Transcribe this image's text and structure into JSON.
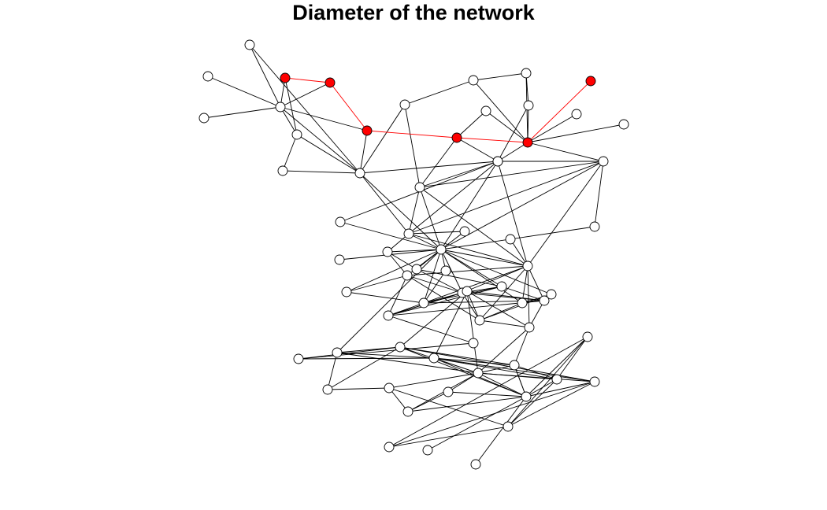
{
  "title": "Diameter of the network",
  "colors": {
    "node_fill": "#ffffff",
    "node_stroke": "#000000",
    "edge": "#000000",
    "highlight": "#ff0000"
  },
  "nodes": [
    {
      "id": "n1",
      "d": false
    },
    {
      "id": "n2",
      "d": false
    },
    {
      "id": "n3",
      "d": true
    },
    {
      "id": "n4",
      "d": true
    },
    {
      "id": "n5",
      "d": false
    },
    {
      "id": "n6",
      "d": false
    },
    {
      "id": "n7",
      "d": false
    },
    {
      "id": "n8",
      "d": false
    },
    {
      "id": "n9",
      "d": true
    },
    {
      "id": "n10",
      "d": false
    },
    {
      "id": "n11",
      "d": false
    },
    {
      "id": "n12",
      "d": false
    },
    {
      "id": "n13",
      "d": false
    },
    {
      "id": "n14",
      "d": false
    },
    {
      "id": "n15",
      "d": true
    },
    {
      "id": "n16",
      "d": false
    },
    {
      "id": "n17",
      "d": false
    },
    {
      "id": "n18",
      "d": true
    },
    {
      "id": "n19",
      "d": true
    },
    {
      "id": "n20",
      "d": false
    },
    {
      "id": "n21",
      "d": false
    },
    {
      "id": "n22",
      "d": false
    },
    {
      "id": "n23",
      "d": false
    },
    {
      "id": "n24",
      "d": false
    },
    {
      "id": "n25",
      "d": false
    },
    {
      "id": "n26",
      "d": false
    },
    {
      "id": "n27",
      "d": false
    },
    {
      "id": "n28",
      "d": false
    },
    {
      "id": "n29",
      "d": false
    },
    {
      "id": "n30",
      "d": false
    },
    {
      "id": "n31",
      "d": false
    },
    {
      "id": "n32",
      "d": false
    },
    {
      "id": "n33",
      "d": false
    },
    {
      "id": "n34",
      "d": false
    },
    {
      "id": "n35",
      "d": false
    },
    {
      "id": "n36",
      "d": false
    },
    {
      "id": "n37",
      "d": false
    },
    {
      "id": "n38",
      "d": false
    },
    {
      "id": "n39",
      "d": false
    },
    {
      "id": "n40",
      "d": false
    },
    {
      "id": "n41",
      "d": false
    },
    {
      "id": "n42",
      "d": false
    },
    {
      "id": "n43",
      "d": false
    },
    {
      "id": "n44",
      "d": false
    },
    {
      "id": "n45",
      "d": false
    },
    {
      "id": "n46",
      "d": false
    },
    {
      "id": "n47",
      "d": false
    },
    {
      "id": "n48",
      "d": false
    },
    {
      "id": "n49",
      "d": false
    },
    {
      "id": "n50",
      "d": false
    },
    {
      "id": "n51",
      "d": false
    },
    {
      "id": "n52",
      "d": false
    },
    {
      "id": "n53",
      "d": false
    },
    {
      "id": "n54",
      "d": false
    },
    {
      "id": "n55",
      "d": false
    },
    {
      "id": "n56",
      "d": false
    },
    {
      "id": "n57",
      "d": false
    },
    {
      "id": "n58",
      "d": false
    },
    {
      "id": "n59",
      "d": false
    },
    {
      "id": "n60",
      "d": false
    },
    {
      "id": "n61",
      "d": false
    },
    {
      "id": "n62",
      "d": false
    },
    {
      "id": "n63",
      "d": false
    },
    {
      "id": "n64",
      "d": false
    },
    {
      "id": "n65",
      "d": false
    },
    {
      "id": "n66",
      "d": false
    }
  ],
  "edges": [
    {
      "s": "n3",
      "t": "n4",
      "d": true
    },
    {
      "s": "n4",
      "t": "n15",
      "d": true
    },
    {
      "s": "n15",
      "t": "n18",
      "d": true
    },
    {
      "s": "n18",
      "t": "n19",
      "d": true
    },
    {
      "s": "n19",
      "t": "n9",
      "d": true
    },
    {
      "s": "n1",
      "t": "n5",
      "d": false
    },
    {
      "s": "n2",
      "t": "n5",
      "d": false
    },
    {
      "s": "n6",
      "t": "n5",
      "d": false
    },
    {
      "s": "n3",
      "t": "n5",
      "d": false
    },
    {
      "s": "n4",
      "t": "n5",
      "d": false
    },
    {
      "s": "n3",
      "t": "n10",
      "d": false
    },
    {
      "s": "n5",
      "t": "n10",
      "d": false
    },
    {
      "s": "n5",
      "t": "n15",
      "d": false
    },
    {
      "s": "n5",
      "t": "n21",
      "d": false
    },
    {
      "s": "n10",
      "t": "n21",
      "d": false
    },
    {
      "s": "n10",
      "t": "n20",
      "d": false
    },
    {
      "s": "n20",
      "t": "n21",
      "d": false
    },
    {
      "s": "n1",
      "t": "n21",
      "d": false
    },
    {
      "s": "n15",
      "t": "n21",
      "d": false
    },
    {
      "s": "n11",
      "t": "n21",
      "d": false
    },
    {
      "s": "n21",
      "t": "n23",
      "d": false
    },
    {
      "s": "n21",
      "t": "n26",
      "d": false
    },
    {
      "s": "n21",
      "t": "n32",
      "d": false
    },
    {
      "s": "n11",
      "t": "n7",
      "d": false
    },
    {
      "s": "n7",
      "t": "n8",
      "d": false
    },
    {
      "s": "n8",
      "t": "n12",
      "d": false
    },
    {
      "s": "n12",
      "t": "n19",
      "d": false
    },
    {
      "s": "n8",
      "t": "n19",
      "d": false
    },
    {
      "s": "n7",
      "t": "n19",
      "d": false
    },
    {
      "s": "n12",
      "t": "n13",
      "d": false
    },
    {
      "s": "n13",
      "t": "n18",
      "d": false
    },
    {
      "s": "n13",
      "t": "n19",
      "d": false
    },
    {
      "s": "n14",
      "t": "n19",
      "d": false
    },
    {
      "s": "n17",
      "t": "n19",
      "d": false
    },
    {
      "s": "n16",
      "t": "n19",
      "d": false
    },
    {
      "s": "n18",
      "t": "n22",
      "d": false
    },
    {
      "s": "n18",
      "t": "n17",
      "d": false
    },
    {
      "s": "n11",
      "t": "n22",
      "d": false
    },
    {
      "s": "n19",
      "t": "n24",
      "d": false
    },
    {
      "s": "n22",
      "t": "n23",
      "d": false
    },
    {
      "s": "n22",
      "t": "n26",
      "d": false
    },
    {
      "s": "n22",
      "t": "n32",
      "d": false
    },
    {
      "s": "n22",
      "t": "n37",
      "d": false
    },
    {
      "s": "n22",
      "t": "n24",
      "d": false
    },
    {
      "s": "n25",
      "t": "n23",
      "d": false
    },
    {
      "s": "n25",
      "t": "n32",
      "d": false
    },
    {
      "s": "n23",
      "t": "n24",
      "d": false
    },
    {
      "s": "n24",
      "t": "n28",
      "d": false
    },
    {
      "s": "n27",
      "t": "n26",
      "d": false
    },
    {
      "s": "n27",
      "t": "n32",
      "d": false
    },
    {
      "s": "n26",
      "t": "n30",
      "d": false
    },
    {
      "s": "n26",
      "t": "n24",
      "d": false
    },
    {
      "s": "n26",
      "t": "n32",
      "d": false
    },
    {
      "s": "n23",
      "t": "n32",
      "d": false
    },
    {
      "s": "n23",
      "t": "n26",
      "d": false
    },
    {
      "s": "n29",
      "t": "n32",
      "d": false
    },
    {
      "s": "n31",
      "t": "n37",
      "d": false
    },
    {
      "s": "n23",
      "t": "n37",
      "d": false
    },
    {
      "s": "n26",
      "t": "n37",
      "d": false
    },
    {
      "s": "n30",
      "t": "n32",
      "d": false
    },
    {
      "s": "n24",
      "t": "n32",
      "d": false
    },
    {
      "s": "n24",
      "t": "n37",
      "d": false
    },
    {
      "s": "n28",
      "t": "n32",
      "d": false
    },
    {
      "s": "n32",
      "t": "n37",
      "d": false
    },
    {
      "s": "n32",
      "t": "n34",
      "d": false
    },
    {
      "s": "n32",
      "t": "n35",
      "d": false
    },
    {
      "s": "n32",
      "t": "n36",
      "d": false
    },
    {
      "s": "n32",
      "t": "n38",
      "d": false
    },
    {
      "s": "n32",
      "t": "n39",
      "d": false
    },
    {
      "s": "n32",
      "t": "n40",
      "d": false
    },
    {
      "s": "n32",
      "t": "n41",
      "d": false
    },
    {
      "s": "n32",
      "t": "n33",
      "d": false
    },
    {
      "s": "n32",
      "t": "n43",
      "d": false
    },
    {
      "s": "n32",
      "t": "n50",
      "d": false
    },
    {
      "s": "n33",
      "t": "n37",
      "d": false
    },
    {
      "s": "n33",
      "t": "n38",
      "d": false
    },
    {
      "s": "n33",
      "t": "n44",
      "d": false
    },
    {
      "s": "n33",
      "t": "n45",
      "d": false
    },
    {
      "s": "n30",
      "t": "n33",
      "d": false
    },
    {
      "s": "n33",
      "t": "n34",
      "d": false
    },
    {
      "s": "n36",
      "t": "n38",
      "d": false
    },
    {
      "s": "n36",
      "t": "n39",
      "d": false
    },
    {
      "s": "n30",
      "t": "n36",
      "d": false
    },
    {
      "s": "n37",
      "t": "n38",
      "d": false
    },
    {
      "s": "n37",
      "t": "n40",
      "d": false
    },
    {
      "s": "n37",
      "t": "n43",
      "d": false
    },
    {
      "s": "n37",
      "t": "n44",
      "d": false
    },
    {
      "s": "n37",
      "t": "n42",
      "d": false
    },
    {
      "s": "n37",
      "t": "n47",
      "d": false
    },
    {
      "s": "n38",
      "t": "n39",
      "d": false
    },
    {
      "s": "n38",
      "t": "n40",
      "d": false
    },
    {
      "s": "n38",
      "t": "n42",
      "d": false
    },
    {
      "s": "n38",
      "t": "n44",
      "d": false
    },
    {
      "s": "n38",
      "t": "n45",
      "d": false
    },
    {
      "s": "n38",
      "t": "n48",
      "d": false
    },
    {
      "s": "n39",
      "t": "n40",
      "d": false
    },
    {
      "s": "n39",
      "t": "n42",
      "d": false
    },
    {
      "s": "n39",
      "t": "n45",
      "d": false
    },
    {
      "s": "n34",
      "t": "n40",
      "d": false
    },
    {
      "s": "n35",
      "t": "n40",
      "d": false
    },
    {
      "s": "n40",
      "t": "n42",
      "d": false
    },
    {
      "s": "n40",
      "t": "n45",
      "d": false
    },
    {
      "s": "n41",
      "t": "n42",
      "d": false
    },
    {
      "s": "n41",
      "t": "n43",
      "d": false
    },
    {
      "s": "n41",
      "t": "n44",
      "d": false
    },
    {
      "s": "n43",
      "t": "n44",
      "d": false
    },
    {
      "s": "n44",
      "t": "n47",
      "d": false
    },
    {
      "s": "n44",
      "t": "n48",
      "d": false
    },
    {
      "s": "n42",
      "t": "n47",
      "d": false
    },
    {
      "s": "n42",
      "t": "n48",
      "d": false
    },
    {
      "s": "n42",
      "t": "n45",
      "d": false
    },
    {
      "s": "n45",
      "t": "n48",
      "d": false
    },
    {
      "s": "n45",
      "t": "n46",
      "d": false
    },
    {
      "s": "n46",
      "t": "n49",
      "d": false
    },
    {
      "s": "n47",
      "t": "n48",
      "d": false
    },
    {
      "s": "n47",
      "t": "n54",
      "d": false
    },
    {
      "s": "n47",
      "t": "n56",
      "d": false
    },
    {
      "s": "n48",
      "t": "n53",
      "d": false
    },
    {
      "s": "n48",
      "t": "n51",
      "d": false
    },
    {
      "s": "n48",
      "t": "n54",
      "d": false
    },
    {
      "s": "n49",
      "t": "n51",
      "d": false
    },
    {
      "s": "n49",
      "t": "n53",
      "d": false
    },
    {
      "s": "n50",
      "t": "n51",
      "d": false
    },
    {
      "s": "n50",
      "t": "n52",
      "d": false
    },
    {
      "s": "n50",
      "t": "n53",
      "d": false
    },
    {
      "s": "n50",
      "t": "n54",
      "d": false
    },
    {
      "s": "n51",
      "t": "n54",
      "d": false
    },
    {
      "s": "n51",
      "t": "n56",
      "d": false
    },
    {
      "s": "n51",
      "t": "n58",
      "d": false
    },
    {
      "s": "n51",
      "t": "n59",
      "d": false
    },
    {
      "s": "n52",
      "t": "n51",
      "d": false
    },
    {
      "s": "n52",
      "t": "n55",
      "d": false
    },
    {
      "s": "n53",
      "t": "n54",
      "d": false
    },
    {
      "s": "n53",
      "t": "n56",
      "d": false
    },
    {
      "s": "n53",
      "t": "n57",
      "d": false
    },
    {
      "s": "n53",
      "t": "n58",
      "d": false
    },
    {
      "s": "n54",
      "t": "n55",
      "d": false
    },
    {
      "s": "n54",
      "t": "n56",
      "d": false
    },
    {
      "s": "n54",
      "t": "n57",
      "d": false
    },
    {
      "s": "n54",
      "t": "n58",
      "d": false
    },
    {
      "s": "n54",
      "t": "n59",
      "d": false
    },
    {
      "s": "n54",
      "t": "n60",
      "d": false
    },
    {
      "s": "n54",
      "t": "n61",
      "d": false
    },
    {
      "s": "n56",
      "t": "n57",
      "d": false
    },
    {
      "s": "n56",
      "t": "n59",
      "d": false
    },
    {
      "s": "n57",
      "t": "n59",
      "d": false
    },
    {
      "s": "n53",
      "t": "n59",
      "d": false
    },
    {
      "s": "n58",
      "t": "n59",
      "d": false
    },
    {
      "s": "n59",
      "t": "n60",
      "d": false
    },
    {
      "s": "n59",
      "t": "n61",
      "d": false
    },
    {
      "s": "n56",
      "t": "n59",
      "d": false
    },
    {
      "s": "n55",
      "t": "n63",
      "d": false
    },
    {
      "s": "n55",
      "t": "n61",
      "d": false
    },
    {
      "s": "n58",
      "t": "n63",
      "d": false
    },
    {
      "s": "n57",
      "t": "n63",
      "d": false
    },
    {
      "s": "n58",
      "t": "n64",
      "d": false
    },
    {
      "s": "n57",
      "t": "n62",
      "d": false
    },
    {
      "s": "n59",
      "t": "n62",
      "d": false
    },
    {
      "s": "n59",
      "t": "n65",
      "d": false
    },
    {
      "s": "n59",
      "t": "n66",
      "d": false
    },
    {
      "s": "n60",
      "t": "n61",
      "d": false
    },
    {
      "s": "n62",
      "t": "n64",
      "d": false
    },
    {
      "s": "n62",
      "t": "n63",
      "d": false
    },
    {
      "s": "n63",
      "t": "n64",
      "d": false
    }
  ]
}
